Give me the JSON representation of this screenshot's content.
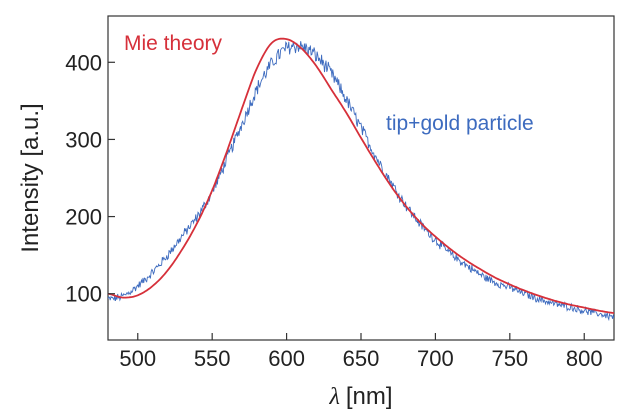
{
  "chart_data": {
    "type": "line",
    "xlabel_symbol": "λ",
    "xlabel_unit": "[nm]",
    "ylabel": "Intensity [a.u.]",
    "xlim": [
      480,
      820
    ],
    "ylim": [
      40,
      460
    ],
    "x_ticks": [
      500,
      550,
      600,
      650,
      700,
      750,
      800
    ],
    "y_ticks": [
      100,
      200,
      300,
      400
    ],
    "grid": false,
    "legend": "inline labels",
    "series": [
      {
        "name": "tip+gold particle",
        "color": "#3d6bbf",
        "style": "noisy measured spectrum",
        "x": [
          480,
          490,
          500,
          510,
          520,
          530,
          540,
          550,
          560,
          570,
          580,
          590,
          600,
          610,
          620,
          630,
          640,
          650,
          660,
          670,
          680,
          690,
          700,
          710,
          720,
          730,
          740,
          750,
          760,
          770,
          780,
          790,
          800,
          810,
          820
        ],
        "y": [
          93,
          97,
          110,
          128,
          150,
          175,
          200,
          232,
          275,
          320,
          365,
          398,
          418,
          420,
          408,
          385,
          352,
          315,
          278,
          245,
          215,
          190,
          170,
          152,
          138,
          125,
          115,
          108,
          100,
          93,
          87,
          83,
          78,
          74,
          70
        ]
      },
      {
        "name": "Mie theory",
        "color": "#d6303a",
        "style": "smooth fit",
        "x": [
          480,
          490,
          500,
          510,
          520,
          530,
          540,
          550,
          560,
          570,
          580,
          590,
          600,
          610,
          620,
          630,
          640,
          650,
          660,
          670,
          680,
          690,
          700,
          710,
          720,
          730,
          740,
          750,
          760,
          770,
          780,
          790,
          800,
          810,
          820
        ],
        "y": [
          100,
          95,
          98,
          110,
          130,
          158,
          192,
          234,
          285,
          340,
          392,
          425,
          430,
          418,
          395,
          365,
          335,
          302,
          270,
          240,
          214,
          192,
          174,
          158,
          144,
          132,
          121,
          112,
          104,
          97,
          91,
          86,
          82,
          78,
          75
        ]
      }
    ]
  }
}
